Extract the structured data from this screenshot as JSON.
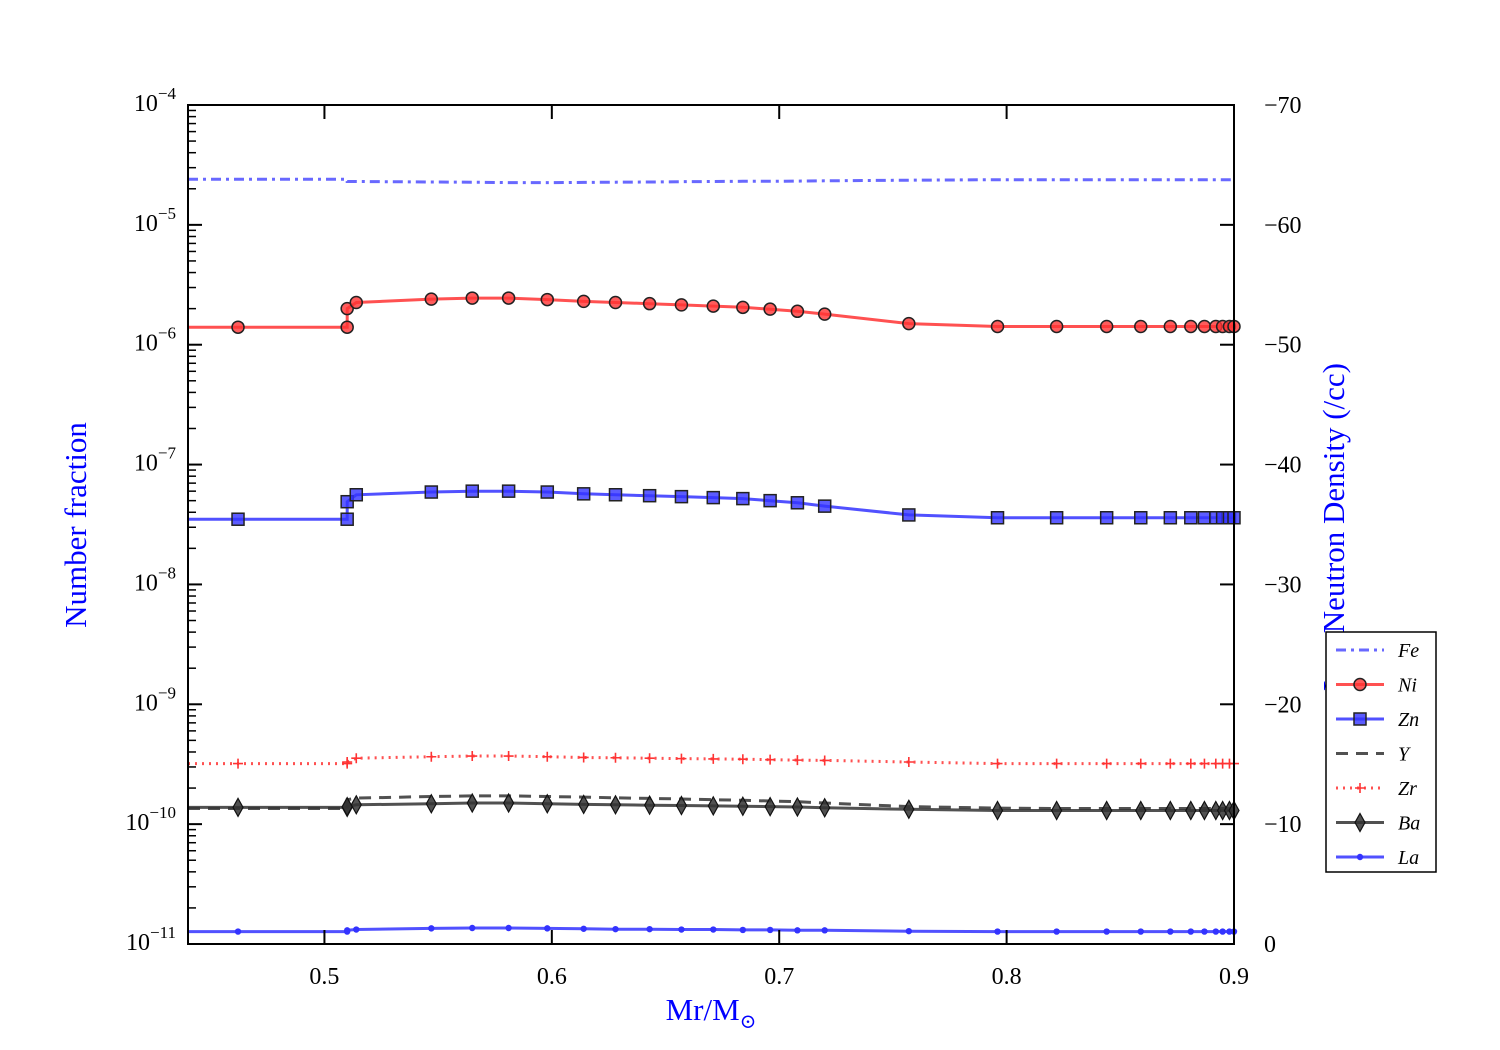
{
  "chart_data": {
    "type": "line",
    "xlabel": "Mr/M",
    "xlabel_symbol": "⊙",
    "ylabel": "Number fraction",
    "y2label": "Log Neutron Density (/cc)",
    "xlim": [
      0.44,
      0.9
    ],
    "ylim": [
      1e-11,
      0.0001
    ],
    "yscale": "log",
    "y2lim": [
      0,
      -70
    ],
    "x_ticks": [
      {
        "value": 0.5,
        "label": "0.5"
      },
      {
        "value": 0.6,
        "label": "0.6"
      },
      {
        "value": 0.7,
        "label": "0.7"
      },
      {
        "value": 0.8,
        "label": "0.8"
      },
      {
        "value": 0.9,
        "label": "0.9"
      }
    ],
    "y_ticks": [
      {
        "exp": -4,
        "base": "10",
        "sup": "−4"
      },
      {
        "exp": -5,
        "base": "10",
        "sup": "−5"
      },
      {
        "exp": -6,
        "base": "10",
        "sup": "−6"
      },
      {
        "exp": -7,
        "base": "10",
        "sup": "−7"
      },
      {
        "exp": -8,
        "base": "10",
        "sup": "−8"
      },
      {
        "exp": -9,
        "base": "10",
        "sup": "−9"
      },
      {
        "exp": -10,
        "base": "10",
        "sup": "−10"
      },
      {
        "exp": -11,
        "base": "10",
        "sup": "−11"
      }
    ],
    "y2_ticks": [
      {
        "value": -70,
        "label": "−70"
      },
      {
        "value": -60,
        "label": "−60"
      },
      {
        "value": -50,
        "label": "−50"
      },
      {
        "value": -40,
        "label": "−40"
      },
      {
        "value": -30,
        "label": "−30"
      },
      {
        "value": -20,
        "label": "−20"
      },
      {
        "value": -10,
        "label": "−10"
      },
      {
        "value": 0,
        "label": "0"
      }
    ],
    "x": [
      0.462,
      0.51,
      0.51,
      0.514,
      0.547,
      0.565,
      0.581,
      0.598,
      0.614,
      0.628,
      0.643,
      0.657,
      0.671,
      0.684,
      0.696,
      0.708,
      0.72,
      0.757,
      0.796,
      0.822,
      0.844,
      0.859,
      0.872,
      0.881,
      0.887,
      0.892,
      0.895,
      0.898,
      0.9
    ],
    "series": [
      {
        "name": "Fe",
        "color": "#4d4dff",
        "style": "dashdot",
        "marker": "none",
        "legend_marker": "none",
        "values": [
          2.4e-05,
          2.4e-05,
          2.3e-05,
          2.3e-05,
          2.28e-05,
          2.27e-05,
          2.25e-05,
          2.25e-05,
          2.26e-05,
          2.27e-05,
          2.28e-05,
          2.29e-05,
          2.3e-05,
          2.31e-05,
          2.31e-05,
          2.32e-05,
          2.33e-05,
          2.36e-05,
          2.38e-05,
          2.38e-05,
          2.38e-05,
          2.38e-05,
          2.38e-05,
          2.38e-05,
          2.38e-05,
          2.38e-05,
          2.38e-05,
          2.38e-05,
          2.38e-05
        ]
      },
      {
        "name": "Ni",
        "color": "#ff3333",
        "style": "solid",
        "marker": "circle",
        "legend_marker": "circle",
        "values": [
          1.4e-06,
          1.4e-06,
          2e-06,
          2.25e-06,
          2.4e-06,
          2.45e-06,
          2.45e-06,
          2.38e-06,
          2.3e-06,
          2.25e-06,
          2.2e-06,
          2.15e-06,
          2.1e-06,
          2.05e-06,
          1.98e-06,
          1.9e-06,
          1.8e-06,
          1.5e-06,
          1.42e-06,
          1.42e-06,
          1.42e-06,
          1.42e-06,
          1.42e-06,
          1.42e-06,
          1.42e-06,
          1.42e-06,
          1.42e-06,
          1.42e-06,
          1.42e-06
        ]
      },
      {
        "name": "Zn",
        "color": "#3333ff",
        "style": "solid",
        "marker": "square",
        "legend_marker": "square",
        "values": [
          3.5e-08,
          3.5e-08,
          4.9e-08,
          5.6e-08,
          5.9e-08,
          6e-08,
          6e-08,
          5.9e-08,
          5.7e-08,
          5.6e-08,
          5.5e-08,
          5.4e-08,
          5.3e-08,
          5.2e-08,
          5e-08,
          4.8e-08,
          4.5e-08,
          3.8e-08,
          3.6e-08,
          3.6e-08,
          3.6e-08,
          3.6e-08,
          3.6e-08,
          3.6e-08,
          3.6e-08,
          3.6e-08,
          3.6e-08,
          3.6e-08,
          3.6e-08
        ]
      },
      {
        "name": "Y",
        "color": "#333333",
        "style": "dashed",
        "marker": "none",
        "legend_marker": "none",
        "values": [
          1.35e-10,
          1.35e-10,
          1.6e-10,
          1.65e-10,
          1.7e-10,
          1.72e-10,
          1.72e-10,
          1.7e-10,
          1.68e-10,
          1.66e-10,
          1.64e-10,
          1.62e-10,
          1.6e-10,
          1.58e-10,
          1.56e-10,
          1.54e-10,
          1.5e-10,
          1.4e-10,
          1.36e-10,
          1.35e-10,
          1.35e-10,
          1.35e-10,
          1.35e-10,
          1.35e-10,
          1.35e-10,
          1.35e-10,
          1.35e-10,
          1.35e-10,
          1.35e-10
        ]
      },
      {
        "name": "Zr",
        "color": "#ff3333",
        "style": "dotted",
        "marker": "plus",
        "legend_marker": "plus",
        "values": [
          3.2e-10,
          3.2e-10,
          3.3e-10,
          3.55e-10,
          3.65e-10,
          3.7e-10,
          3.7e-10,
          3.65e-10,
          3.6e-10,
          3.58e-10,
          3.55e-10,
          3.52e-10,
          3.5e-10,
          3.48e-10,
          3.45e-10,
          3.42e-10,
          3.4e-10,
          3.3e-10,
          3.2e-10,
          3.2e-10,
          3.2e-10,
          3.2e-10,
          3.2e-10,
          3.2e-10,
          3.2e-10,
          3.2e-10,
          3.2e-10,
          3.2e-10,
          3.2e-10
        ]
      },
      {
        "name": "Ba",
        "color": "#333333",
        "style": "solid",
        "marker": "diamond",
        "legend_marker": "diamond",
        "values": [
          1.38e-10,
          1.38e-10,
          1.4e-10,
          1.45e-10,
          1.48e-10,
          1.5e-10,
          1.5e-10,
          1.48e-10,
          1.46e-10,
          1.45e-10,
          1.44e-10,
          1.43e-10,
          1.42e-10,
          1.41e-10,
          1.4e-10,
          1.39e-10,
          1.37e-10,
          1.33e-10,
          1.3e-10,
          1.3e-10,
          1.3e-10,
          1.3e-10,
          1.3e-10,
          1.3e-10,
          1.3e-10,
          1.3e-10,
          1.3e-10,
          1.3e-10,
          1.3e-10
        ]
      },
      {
        "name": "La",
        "color": "#3333ff",
        "style": "solid",
        "marker": "dot",
        "legend_marker": "dot",
        "values": [
          1.27e-11,
          1.27e-11,
          1.3e-11,
          1.32e-11,
          1.35e-11,
          1.36e-11,
          1.36e-11,
          1.35e-11,
          1.34e-11,
          1.33e-11,
          1.33e-11,
          1.32e-11,
          1.32e-11,
          1.31e-11,
          1.31e-11,
          1.3e-11,
          1.3e-11,
          1.28e-11,
          1.27e-11,
          1.27e-11,
          1.27e-11,
          1.27e-11,
          1.27e-11,
          1.27e-11,
          1.27e-11,
          1.27e-11,
          1.27e-11,
          1.27e-11,
          1.27e-11
        ]
      }
    ],
    "legend": {
      "placement": "right-middle-outside"
    },
    "grid": false,
    "colors": {
      "axis_title": "#0000ff",
      "frame": "#000000"
    }
  }
}
